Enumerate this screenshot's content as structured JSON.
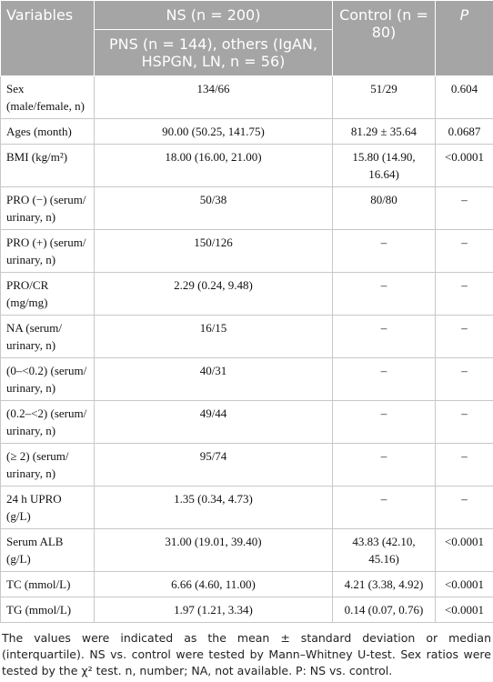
{
  "table": {
    "header": {
      "variables": "Variables",
      "ns": "NS (n = 200)",
      "ns_sub": "PNS (n = 144), others (IgAN, HSPGN, LN, n = 56)",
      "control": "Control (n = 80)",
      "p": "P"
    },
    "rows": [
      [
        "Sex (male/female, n)",
        "134/66",
        "51/29",
        "0.604"
      ],
      [
        "Ages (month)",
        "90.00 (50.25, 141.75)",
        "81.29 ± 35.64",
        "0.0687"
      ],
      [
        "BMI (kg/m²)",
        "18.00 (16.00, 21.00)",
        "15.80 (14.90, 16.64)",
        "<0.0001"
      ],
      [
        "PRO (−) (serum/ urinary, n)",
        "50/38",
        "80/80",
        "–"
      ],
      [
        "PRO (+) (serum/ urinary, n)",
        "150/126",
        "–",
        "–"
      ],
      [
        "PRO/CR (mg/mg)",
        "2.29 (0.24, 9.48)",
        "–",
        "–"
      ],
      [
        "NA (serum/ urinary, n)",
        "16/15",
        "–",
        "–"
      ],
      [
        "(0–<0.2) (serum/ urinary, n)",
        "40/31",
        "–",
        "–"
      ],
      [
        "(0.2–<2) (serum/ urinary, n)",
        "49/44",
        "–",
        "–"
      ],
      [
        "(≥ 2) (serum/ urinary, n)",
        "95/74",
        "–",
        "–"
      ],
      [
        "24 h UPRO (g/L)",
        "1.35 (0.34, 4.73)",
        "–",
        "–"
      ],
      [
        "Serum ALB (g/L)",
        "31.00 (19.01, 39.40)",
        "43.83 (42.10, 45.16)",
        "<0.0001"
      ],
      [
        "TC (mmol/L)",
        "6.66 (4.60, 11.00)",
        "4.21 (3.38, 4.92)",
        "<0.0001"
      ],
      [
        "TG (mmol/L)",
        "1.97 (1.21, 3.34)",
        "0.14 (0.07, 0.76)",
        "<0.0001"
      ]
    ],
    "footnote": "The values were indicated as the mean ± standard deviation or median (interquartile). NS vs. control were tested by Mann–Whitney U-test. Sex ratios were tested by the χ² test. n, number; NA, not available. P: NS vs. control."
  }
}
